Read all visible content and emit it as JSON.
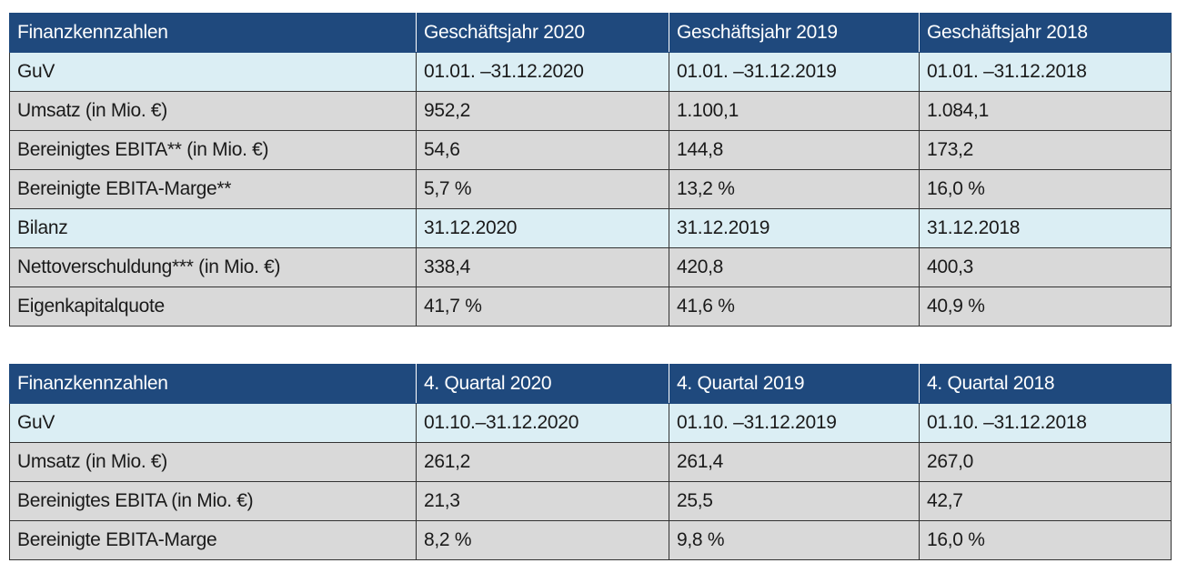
{
  "annual": {
    "header": [
      "Finanzkennzahlen",
      "Geschäftsjahr 2020",
      "Geschäftsjahr 2019",
      "Geschäftsjahr 2018"
    ],
    "rows": [
      {
        "type": "period",
        "cells": [
          "GuV",
          "01.01. –31.12.2020",
          "01.01. –31.12.2019",
          "01.01. –31.12.2018"
        ]
      },
      {
        "type": "value",
        "cells": [
          "Umsatz (in Mio. €)",
          "952,2",
          "1.100,1",
          "1.084,1"
        ]
      },
      {
        "type": "value",
        "cells": [
          "Bereinigtes EBITA** (in Mio. €)",
          "54,6",
          "144,8",
          "173,2"
        ]
      },
      {
        "type": "value",
        "cells": [
          "Bereinigte EBITA-Marge**",
          "5,7 %",
          "13,2 %",
          "16,0 %"
        ]
      },
      {
        "type": "period",
        "cells": [
          "Bilanz",
          "31.12.2020",
          "31.12.2019",
          "31.12.2018"
        ]
      },
      {
        "type": "value",
        "cells": [
          "Nettoverschuldung*** (in Mio. €)",
          "338,4",
          "420,8",
          "400,3"
        ]
      },
      {
        "type": "value",
        "cells": [
          "Eigenkapitalquote",
          "41,7 %",
          "41,6 %",
          "40,9 %"
        ]
      }
    ]
  },
  "quarter": {
    "header": [
      "Finanzkennzahlen",
      "4. Quartal 2020",
      "4. Quartal 2019",
      "4. Quartal 2018"
    ],
    "rows": [
      {
        "type": "period",
        "cells": [
          "GuV",
          "01.10.–31.12.2020",
          "01.10. –31.12.2019",
          "01.10. –31.12.2018"
        ]
      },
      {
        "type": "value",
        "cells": [
          "Umsatz (in Mio. €)",
          "261,2",
          "261,4",
          "267,0"
        ]
      },
      {
        "type": "value",
        "cells": [
          "Bereinigtes EBITA (in Mio. €)",
          "21,3",
          "25,5",
          "42,7"
        ]
      },
      {
        "type": "value",
        "cells": [
          "Bereinigte EBITA-Marge",
          "8,2 %",
          "9,8 %",
          "16,0 %"
        ]
      }
    ]
  },
  "colors": {
    "header_bg": "#1f497d",
    "period_row_bg": "#dbeef4",
    "value_row_bg": "#d9d9d9"
  }
}
